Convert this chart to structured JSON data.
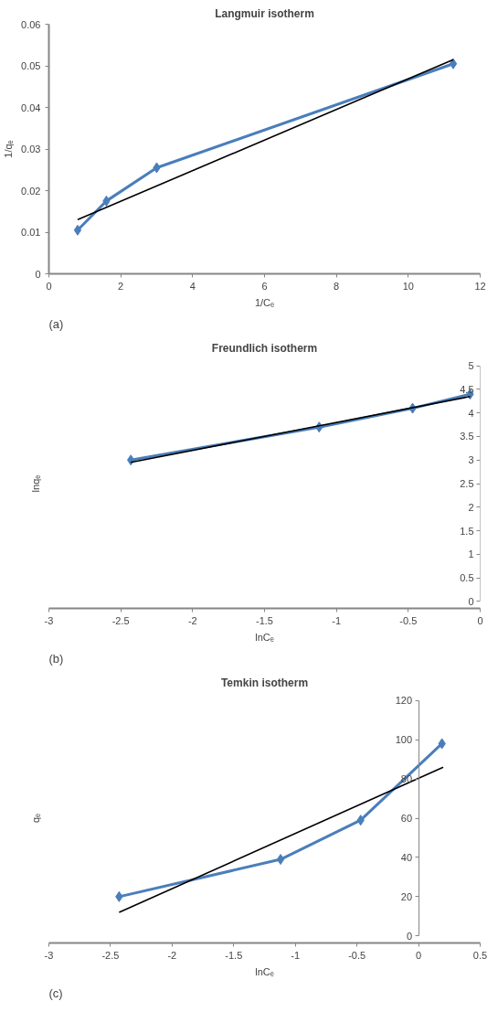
{
  "chart_data": [
    {
      "type": "line",
      "title": "Langmuir isotherm",
      "xlabel": "1/Cₑ",
      "ylabel": "1/qₑ",
      "annotations": [
        "(a)"
      ],
      "x": [
        0.8,
        1.6,
        3.0,
        11.25
      ],
      "xlim": [
        0,
        12
      ],
      "xticks": [
        0,
        2,
        4,
        6,
        8,
        10,
        12
      ],
      "ylim": [
        0,
        0.06
      ],
      "yticks": [
        0,
        0.01,
        0.02,
        0.03,
        0.04,
        0.05,
        0.06
      ],
      "marker": "diamond",
      "line_style": "solid",
      "series": [
        {
          "color": "#4a7ebb",
          "values": [
            0.0105,
            0.0175,
            0.0255,
            0.0505
          ]
        },
        {
          "type": "line",
          "color": "#000000",
          "marker": "none",
          "x": [
            0.8,
            11.25
          ],
          "values": [
            0.013,
            0.0515
          ]
        }
      ]
    },
    {
      "type": "line",
      "title": "Freundlich isotherm",
      "xlabel": "lnCₑ",
      "ylabel": "lnqₑ",
      "annotations": [
        "(b)"
      ],
      "x": [
        -2.43,
        -1.12,
        -0.47,
        -0.07
      ],
      "xlim": [
        -3,
        0
      ],
      "xticks": [
        -3,
        -2.5,
        -2,
        -1.5,
        -1,
        -0.5,
        0
      ],
      "ylim": [
        0,
        5
      ],
      "yticks": [
        0,
        0.5,
        1,
        1.5,
        2,
        2.5,
        3,
        3.5,
        4,
        4.5,
        5
      ],
      "marker": "diamond",
      "line_style": "solid",
      "series": [
        {
          "color": "#4a7ebb",
          "values": [
            3.0,
            3.7,
            4.1,
            4.4
          ]
        },
        {
          "type": "line",
          "color": "#000000",
          "marker": "none",
          "x": [
            -2.43,
            -0.07
          ],
          "values": [
            2.95,
            4.35
          ]
        }
      ]
    },
    {
      "type": "line",
      "title": "Temkin isotherm",
      "xlabel": "lnCₑ",
      "ylabel": "qₑ",
      "annotations": [
        "(c)"
      ],
      "x": [
        -2.43,
        -1.12,
        -0.47,
        0.19
      ],
      "xlim": [
        -3,
        0.5
      ],
      "xticks": [
        -3,
        -2.5,
        -2,
        -1.5,
        -1,
        -0.5,
        0,
        0.5
      ],
      "ylim": [
        0,
        120
      ],
      "yticks": [
        0,
        20,
        40,
        60,
        80,
        100,
        120
      ],
      "marker": "diamond",
      "line_style": "solid",
      "series": [
        {
          "color": "#4a7ebb",
          "values": [
            20,
            39,
            59,
            98
          ]
        },
        {
          "type": "line",
          "color": "#000000",
          "marker": "none",
          "x": [
            -2.43,
            0.2
          ],
          "values": [
            12,
            86
          ]
        }
      ]
    }
  ]
}
